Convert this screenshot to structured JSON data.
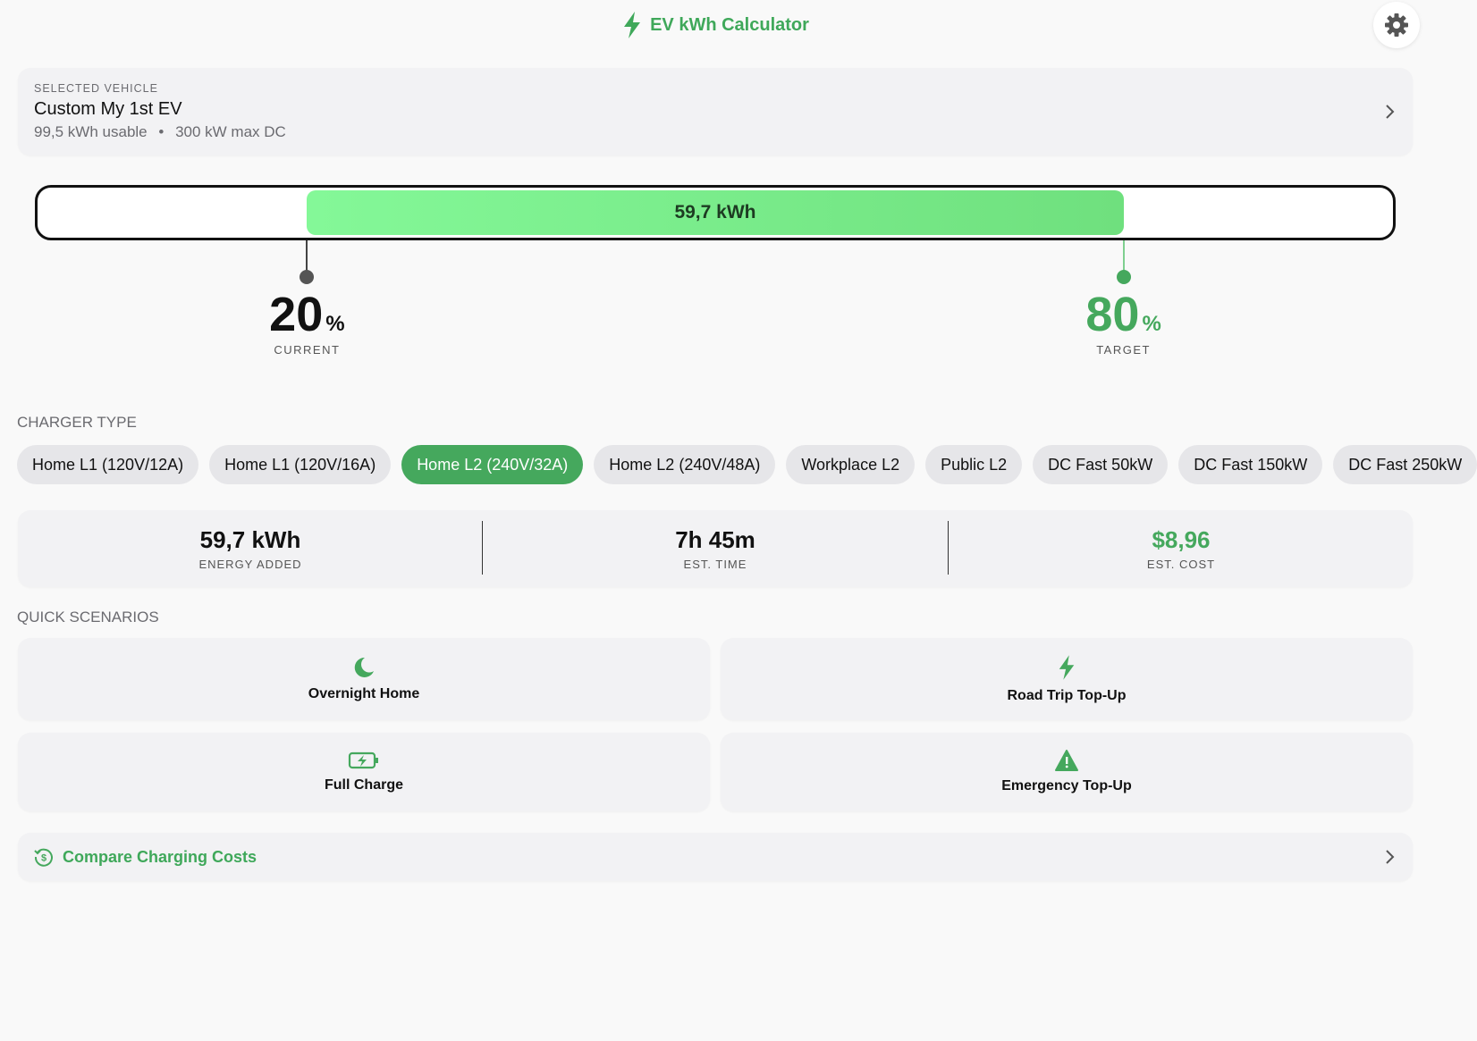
{
  "header": {
    "title": "EV kWh Calculator"
  },
  "vehicle": {
    "label": "SELECTED VEHICLE",
    "name": "Custom My 1st EV",
    "capacity": "99,5 kWh usable",
    "power": "300 kW max DC"
  },
  "battery": {
    "energy_label": "59,7 kWh",
    "current": {
      "value": 20,
      "unit": "%",
      "label": "CURRENT"
    },
    "target": {
      "value": 80,
      "unit": "%",
      "label": "TARGET"
    }
  },
  "charger": {
    "title": "CHARGER TYPE",
    "options": [
      "Home L1 (120V/12A)",
      "Home L1 (120V/16A)",
      "Home L2 (240V/32A)",
      "Home L2 (240V/48A)",
      "Workplace L2",
      "Public L2",
      "DC Fast 50kW",
      "DC Fast 150kW",
      "DC Fast 250kW"
    ],
    "selected": 2
  },
  "stats": [
    {
      "value": "59,7 kWh",
      "label": "ENERGY ADDED"
    },
    {
      "value": "7h 45m",
      "label": "EST. TIME"
    },
    {
      "value": "$8,96",
      "label": "EST. COST"
    }
  ],
  "scenarios": {
    "title": "QUICK SCENARIOS",
    "items": [
      "Overnight Home",
      "Road Trip Top-Up",
      "Full Charge",
      "Emergency Top-Up"
    ]
  },
  "compare": {
    "label": "Compare Charging Costs"
  }
}
